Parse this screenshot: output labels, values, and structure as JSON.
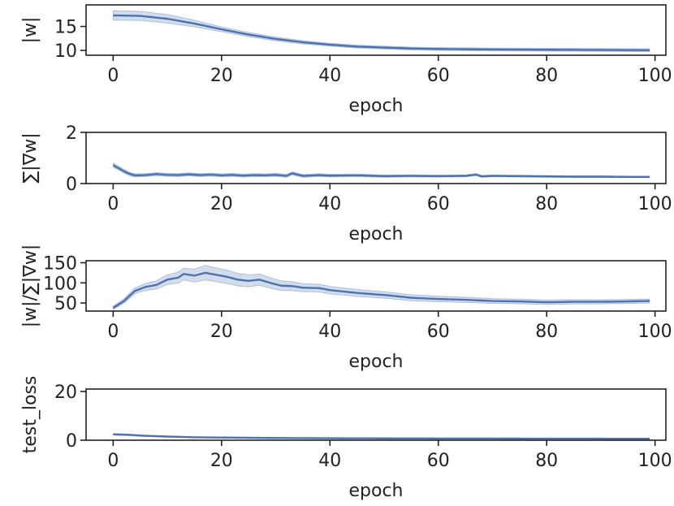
{
  "chart_data": [
    {
      "type": "line",
      "xlabel": "epoch",
      "ylabel": "|w|",
      "xlim": [
        -5,
        102
      ],
      "ylim": [
        9,
        19.5
      ],
      "xticks": [
        0,
        20,
        40,
        60,
        80,
        100
      ],
      "yticks": [
        10,
        15
      ],
      "grid": false,
      "series": [
        {
          "keypoints": [
            [
              0,
              17.3
            ],
            [
              5,
              17.2
            ],
            [
              10,
              16.6
            ],
            [
              15,
              15.6
            ],
            [
              20,
              14.4
            ],
            [
              25,
              13.3
            ],
            [
              30,
              12.4
            ],
            [
              35,
              11.7
            ],
            [
              40,
              11.2
            ],
            [
              45,
              10.8
            ],
            [
              50,
              10.6
            ],
            [
              55,
              10.4
            ],
            [
              60,
              10.3
            ],
            [
              70,
              10.2
            ],
            [
              80,
              10.15
            ],
            [
              90,
              10.1
            ],
            [
              99,
              10.05
            ]
          ],
          "ci_half_width": [
            [
              0,
              1.0
            ],
            [
              10,
              0.9
            ],
            [
              20,
              0.5
            ],
            [
              40,
              0.3
            ],
            [
              99,
              0.3
            ]
          ]
        }
      ]
    },
    {
      "type": "line",
      "xlabel": "epoch",
      "ylabel": "∑|∇w|",
      "xlim": [
        -5,
        102
      ],
      "ylim": [
        0,
        2
      ],
      "xticks": [
        0,
        20,
        40,
        60,
        80,
        100
      ],
      "yticks": [
        0,
        2
      ],
      "grid": false,
      "series": [
        {
          "keypoints": [
            [
              0,
              0.72
            ],
            [
              1,
              0.6
            ],
            [
              2,
              0.48
            ],
            [
              3,
              0.38
            ],
            [
              4,
              0.32
            ],
            [
              6,
              0.33
            ],
            [
              8,
              0.37
            ],
            [
              10,
              0.34
            ],
            [
              12,
              0.33
            ],
            [
              14,
              0.36
            ],
            [
              16,
              0.33
            ],
            [
              18,
              0.35
            ],
            [
              20,
              0.32
            ],
            [
              22,
              0.34
            ],
            [
              24,
              0.31
            ],
            [
              26,
              0.33
            ],
            [
              28,
              0.32
            ],
            [
              30,
              0.34
            ],
            [
              32,
              0.3
            ],
            [
              33,
              0.4
            ],
            [
              35,
              0.3
            ],
            [
              38,
              0.33
            ],
            [
              40,
              0.31
            ],
            [
              45,
              0.32
            ],
            [
              50,
              0.29
            ],
            [
              55,
              0.3
            ],
            [
              60,
              0.29
            ],
            [
              65,
              0.3
            ],
            [
              67,
              0.35
            ],
            [
              68,
              0.28
            ],
            [
              70,
              0.3
            ],
            [
              75,
              0.29
            ],
            [
              80,
              0.28
            ],
            [
              85,
              0.27
            ],
            [
              90,
              0.27
            ],
            [
              95,
              0.26
            ],
            [
              99,
              0.26
            ]
          ],
          "ci_half_width": [
            [
              0,
              0.08
            ],
            [
              5,
              0.06
            ],
            [
              30,
              0.06
            ],
            [
              60,
              0.04
            ],
            [
              99,
              0.03
            ]
          ]
        }
      ]
    },
    {
      "type": "line",
      "xlabel": "epoch",
      "ylabel": "|w|/∑|∇w|",
      "xlim": [
        -5,
        102
      ],
      "ylim": [
        30,
        155
      ],
      "xticks": [
        0,
        20,
        40,
        60,
        80,
        100
      ],
      "yticks": [
        50,
        100,
        150
      ],
      "grid": false,
      "series": [
        {
          "keypoints": [
            [
              0,
              38
            ],
            [
              2,
              55
            ],
            [
              4,
              80
            ],
            [
              6,
              90
            ],
            [
              8,
              95
            ],
            [
              10,
              108
            ],
            [
              12,
              113
            ],
            [
              13,
              122
            ],
            [
              15,
              118
            ],
            [
              17,
              125
            ],
            [
              19,
              120
            ],
            [
              21,
              115
            ],
            [
              23,
              108
            ],
            [
              25,
              105
            ],
            [
              27,
              108
            ],
            [
              29,
              100
            ],
            [
              31,
              93
            ],
            [
              33,
              92
            ],
            [
              35,
              88
            ],
            [
              38,
              87
            ],
            [
              40,
              82
            ],
            [
              45,
              75
            ],
            [
              50,
              70
            ],
            [
              55,
              63
            ],
            [
              60,
              60
            ],
            [
              65,
              58
            ],
            [
              70,
              55
            ],
            [
              75,
              54
            ],
            [
              80,
              52
            ],
            [
              85,
              53
            ],
            [
              90,
              53
            ],
            [
              95,
              54
            ],
            [
              99,
              55
            ]
          ],
          "ci_half_width": [
            [
              0,
              4
            ],
            [
              10,
              12
            ],
            [
              17,
              18
            ],
            [
              25,
              15
            ],
            [
              35,
              10
            ],
            [
              50,
              8
            ],
            [
              70,
              6
            ],
            [
              99,
              5
            ]
          ]
        }
      ]
    },
    {
      "type": "line",
      "xlabel": "epoch",
      "ylabel": "test_loss",
      "xlim": [
        -5,
        102
      ],
      "ylim": [
        0,
        21
      ],
      "xticks": [
        0,
        20,
        40,
        60,
        80,
        100
      ],
      "yticks": [
        0,
        20
      ],
      "grid": false,
      "series": [
        {
          "keypoints": [
            [
              0,
              2.4
            ],
            [
              3,
              2.2
            ],
            [
              5,
              1.9
            ],
            [
              10,
              1.5
            ],
            [
              15,
              1.2
            ],
            [
              20,
              1.1
            ],
            [
              30,
              0.9
            ],
            [
              40,
              0.8
            ],
            [
              60,
              0.7
            ],
            [
              80,
              0.65
            ],
            [
              99,
              0.6
            ]
          ],
          "ci_half_width": [
            [
              0,
              0.3
            ],
            [
              20,
              0.15
            ],
            [
              99,
              0.1
            ]
          ]
        }
      ]
    }
  ]
}
